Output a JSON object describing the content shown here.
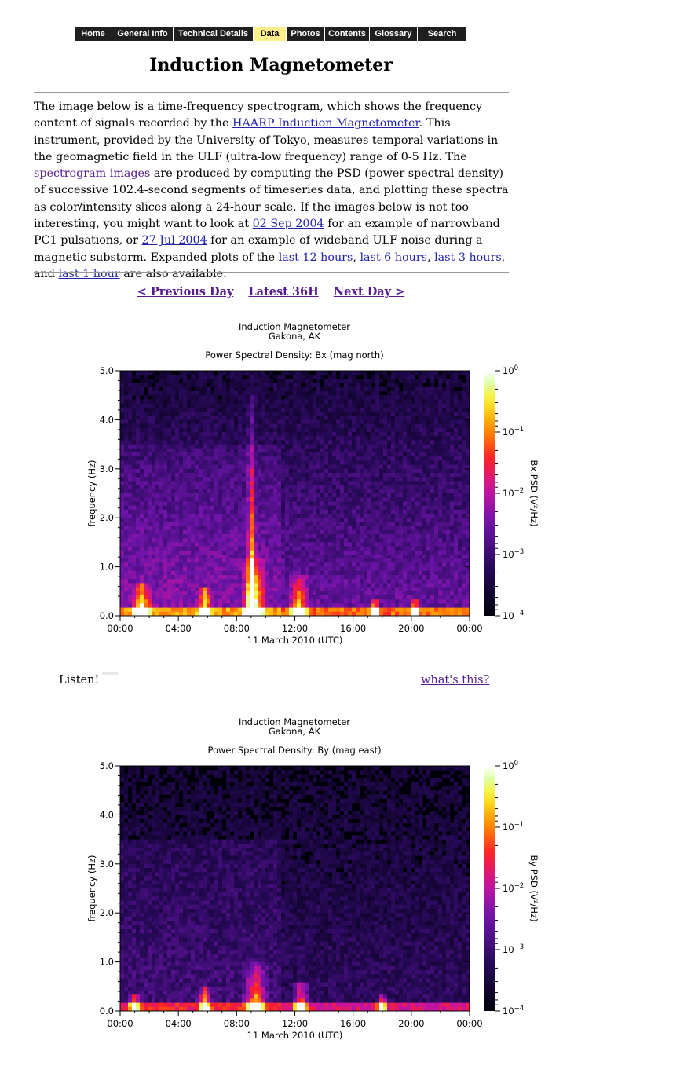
{
  "nav": {
    "tabs": [
      "Home",
      "General Info",
      "Technical Details",
      "Data",
      "Photos",
      "Contents",
      "Glossary",
      "Search"
    ],
    "active": "Data"
  },
  "page_title": "Induction Magnetometer",
  "intro": {
    "t1": "The image below is a time-frequency spectrogram, which shows the frequency content of signals recorded by the ",
    "link_magnetometer": "HAARP Induction Magnetometer",
    "t2": ". This instrument, provided by the University of Tokyo, measures temporal variations in the geomagnetic field in the ULF (ultra-low frequency) range of 0-5 Hz. The ",
    "link_spectrogram": "spectrogram images",
    "t3": " are produced by computing the PSD (power spectral density) of successive 102.4-second segments of timeseries data, and plotting these spectra as color/intensity slices along a 24-hour scale. If the images below is not too interesting, you might want to look at ",
    "link_sep": "02 Sep 2004",
    "t4": " for an example of narrowband PC1 pulsations, or ",
    "link_jul": "27 Jul 2004",
    "t5": " for an example of wideband ULF noise during a magnetic substorm. Expanded plots of the ",
    "link_12h": "last 12 hours",
    "t6": ", ",
    "link_6h": "last 6 hours",
    "t7": ", ",
    "link_3h": "last 3 hours",
    "t8": ", and ",
    "link_1h": "last 1 hour",
    "t9": " are also available."
  },
  "daynav": {
    "prev": "< Previous Day",
    "latest": "Latest 36H",
    "next": "Next Day >"
  },
  "listen": {
    "label": "Listen!",
    "whats_this": "what's this?"
  },
  "chart_data": [
    {
      "type": "heatmap",
      "title": "Induction Magnetometer",
      "subtitle": "Gakona, AK",
      "plot_title": "Power Spectral Density: Bx (mag north)",
      "xlabel": "11 March 2010 (UTC)",
      "ylabel": "frequency (Hz)",
      "colorbar_label": "Bx PSD (V²/Hz)",
      "x_ticks": [
        "00:00",
        "04:00",
        "08:00",
        "12:00",
        "16:00",
        "20:00",
        "00:00"
      ],
      "y_ticks": [
        "0.0",
        "1.0",
        "2.0",
        "3.0",
        "4.0",
        "5.0"
      ],
      "ylim": [
        0,
        5
      ],
      "xlim_hours": [
        0,
        24
      ],
      "color_scale": "log",
      "colorbar_ticks": [
        {
          "base": "10",
          "exp": "0"
        },
        {
          "base": "10",
          "exp": "−1"
        },
        {
          "base": "10",
          "exp": "−2"
        },
        {
          "base": "10",
          "exp": "−3"
        },
        {
          "base": "10",
          "exp": "−4"
        }
      ],
      "background_level": "purple",
      "bursts": [
        {
          "t": 1.5,
          "f": 0.7,
          "s": 0.8
        },
        {
          "t": 5.8,
          "f": 0.6,
          "s": 0.6
        },
        {
          "t": 9.2,
          "f": 1.2,
          "s": 1.0
        },
        {
          "t": 9.0,
          "f": 5.0,
          "s": 0.35
        },
        {
          "t": 12.3,
          "f": 0.8,
          "s": 0.8
        },
        {
          "t": 17.5,
          "f": 0.3,
          "s": 0.4
        },
        {
          "t": 20.2,
          "f": 0.3,
          "s": 0.4
        }
      ],
      "colors": {
        "low": "#000020",
        "mid": "#8a1ab0",
        "high": "#ff2020",
        "top": "#ffffe0"
      }
    },
    {
      "type": "heatmap",
      "title": "Induction Magnetometer",
      "subtitle": "Gakona, AK",
      "plot_title": "Power Spectral Density: By (mag east)",
      "xlabel": "11 March 2010 (UTC)",
      "ylabel": "frequency (Hz)",
      "colorbar_label": "By PSD (V²/Hz)",
      "x_ticks": [
        "00:00",
        "04:00",
        "08:00",
        "12:00",
        "16:00",
        "20:00",
        "00:00"
      ],
      "y_ticks": [
        "0.0",
        "1.0",
        "2.0",
        "3.0",
        "4.0",
        "5.0"
      ],
      "ylim": [
        0,
        5
      ],
      "xlim_hours": [
        0,
        24
      ],
      "color_scale": "log",
      "colorbar_ticks": [
        {
          "base": "10",
          "exp": "0"
        },
        {
          "base": "10",
          "exp": "−1"
        },
        {
          "base": "10",
          "exp": "−2"
        },
        {
          "base": "10",
          "exp": "−3"
        },
        {
          "base": "10",
          "exp": "−4"
        }
      ],
      "background_level": "dark",
      "bursts": [
        {
          "t": 1.0,
          "f": 0.3,
          "s": 0.5
        },
        {
          "t": 5.8,
          "f": 0.5,
          "s": 0.6
        },
        {
          "t": 9.3,
          "f": 1.0,
          "s": 1.0
        },
        {
          "t": 12.4,
          "f": 0.6,
          "s": 0.7
        },
        {
          "t": 18.0,
          "f": 0.3,
          "s": 0.4
        }
      ],
      "colors": {
        "low": "#000010",
        "mid": "#8a1ab0",
        "high": "#ff2020",
        "top": "#ffffe0"
      }
    }
  ]
}
